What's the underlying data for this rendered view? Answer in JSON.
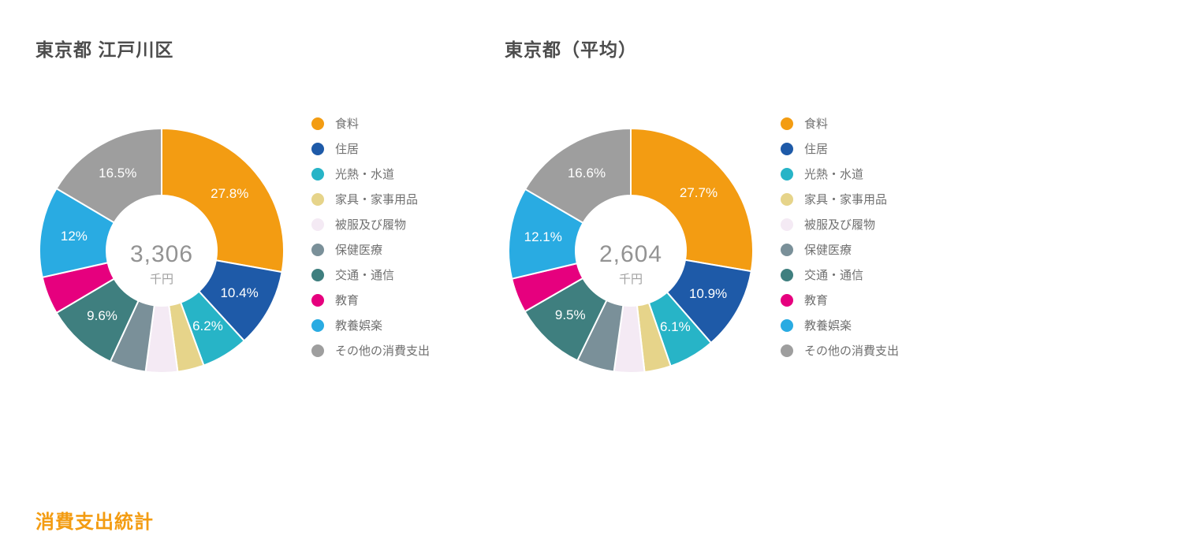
{
  "page": {
    "footer_title": "消費支出統計",
    "footer_color": "#f39c12",
    "background_color": "#ffffff"
  },
  "categories": [
    {
      "label": "食料",
      "color": "#f39c12"
    },
    {
      "label": "住居",
      "color": "#1e5aa8"
    },
    {
      "label": "光熱・水道",
      "color": "#27b4c7"
    },
    {
      "label": "家具・家事用品",
      "color": "#e6d48a"
    },
    {
      "label": "被服及び履物",
      "color": "#f4eaf4"
    },
    {
      "label": "保健医療",
      "color": "#7a9099"
    },
    {
      "label": "交通・通信",
      "color": "#3f7f7f"
    },
    {
      "label": "教育",
      "color": "#e6007e"
    },
    {
      "label": "教養娯楽",
      "color": "#29abe2"
    },
    {
      "label": "その他の消費支出",
      "color": "#9e9e9e"
    }
  ],
  "charts": [
    {
      "title": "東京都 江戸川区",
      "center_value": "3,306",
      "center_unit": "千円",
      "type": "donut",
      "inner_radius": 70,
      "outer_radius": 155,
      "label_min_percent": 5.5,
      "slices": [
        {
          "cat": 0,
          "percent": 27.8,
          "label": "27.8%"
        },
        {
          "cat": 1,
          "percent": 10.4,
          "label": "10.4%"
        },
        {
          "cat": 2,
          "percent": 6.2,
          "label": "6.2%"
        },
        {
          "cat": 3,
          "percent": 3.5,
          "label": ""
        },
        {
          "cat": 4,
          "percent": 4.2,
          "label": ""
        },
        {
          "cat": 5,
          "percent": 4.8,
          "label": ""
        },
        {
          "cat": 6,
          "percent": 9.6,
          "label": "9.6%"
        },
        {
          "cat": 7,
          "percent": 5.0,
          "label": ""
        },
        {
          "cat": 8,
          "percent": 12.0,
          "label": "12%"
        },
        {
          "cat": 9,
          "percent": 16.5,
          "label": "16.5%"
        }
      ]
    },
    {
      "title": "東京都（平均）",
      "center_value": "2,604",
      "center_unit": "千円",
      "type": "donut",
      "inner_radius": 70,
      "outer_radius": 155,
      "label_min_percent": 5.5,
      "slices": [
        {
          "cat": 0,
          "percent": 27.7,
          "label": "27.7%"
        },
        {
          "cat": 1,
          "percent": 10.9,
          "label": "10.9%"
        },
        {
          "cat": 2,
          "percent": 6.1,
          "label": "6.1%"
        },
        {
          "cat": 3,
          "percent": 3.5,
          "label": ""
        },
        {
          "cat": 4,
          "percent": 4.0,
          "label": ""
        },
        {
          "cat": 5,
          "percent": 5.0,
          "label": ""
        },
        {
          "cat": 6,
          "percent": 9.5,
          "label": "9.5%"
        },
        {
          "cat": 7,
          "percent": 4.6,
          "label": ""
        },
        {
          "cat": 8,
          "percent": 12.1,
          "label": "12.1%"
        },
        {
          "cat": 9,
          "percent": 16.6,
          "label": "16.6%"
        }
      ]
    }
  ]
}
